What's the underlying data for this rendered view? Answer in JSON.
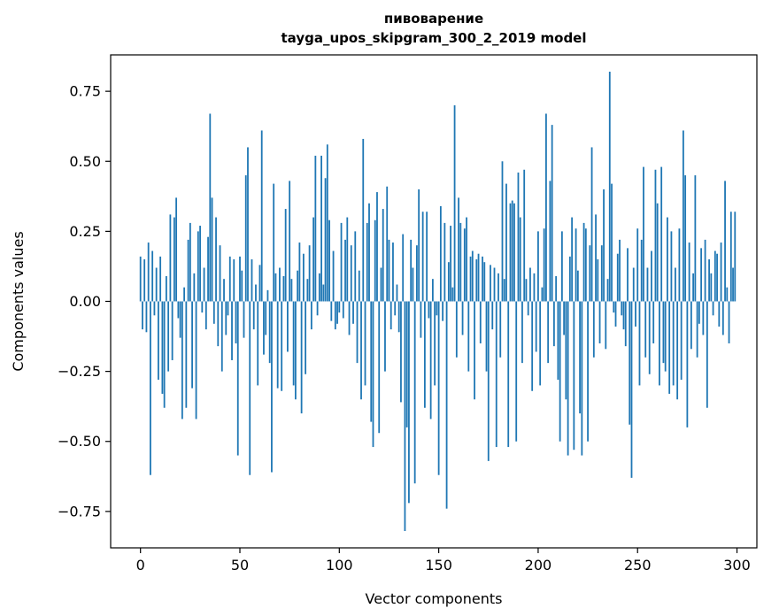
{
  "figure": {
    "title": "пивоварение",
    "subtitle": "tayga_upos_skipgram_300_2_2019 model",
    "xlabel": "Vector components",
    "ylabel": "Components values"
  },
  "chart_data": {
    "type": "bar",
    "title": "пивоварение",
    "subtitle": "tayga_upos_skipgram_300_2_2019 model",
    "xlabel": "Vector components",
    "ylabel": "Components values",
    "grid": false,
    "legend": null,
    "bar_color": "#1f77b4",
    "axis_color": "#000000",
    "xlim": [
      -15,
      310
    ],
    "ylim": [
      -0.88,
      0.88
    ],
    "xticks": [
      0,
      50,
      100,
      150,
      200,
      250,
      300
    ],
    "xtick_labels": [
      "0",
      "50",
      "100",
      "150",
      "200",
      "250",
      "300"
    ],
    "yticks": [
      -0.75,
      -0.5,
      -0.25,
      0,
      0.25,
      0.5,
      0.75
    ],
    "ytick_labels": [
      "−0.75",
      "−0.50",
      "−0.25",
      "0.00",
      "0.25",
      "0.50",
      "0.75"
    ],
    "x_start": 0,
    "values": [
      0.16,
      -0.1,
      0.15,
      -0.11,
      0.21,
      -0.62,
      0.18,
      -0.05,
      0.12,
      -0.28,
      0.16,
      -0.33,
      -0.38,
      0.09,
      -0.25,
      0.31,
      -0.21,
      0.3,
      0.37,
      -0.06,
      -0.13,
      -0.42,
      0.05,
      -0.38,
      0.22,
      0.28,
      -0.31,
      0.1,
      -0.42,
      0.25,
      0.27,
      -0.04,
      0.12,
      -0.1,
      0.23,
      0.67,
      0.37,
      -0.08,
      0.3,
      -0.16,
      0.2,
      -0.25,
      0.08,
      -0.12,
      -0.05,
      0.16,
      -0.21,
      0.15,
      -0.15,
      -0.55,
      0.16,
      0.11,
      -0.13,
      0.45,
      0.55,
      -0.62,
      0.15,
      -0.1,
      0.06,
      -0.3,
      0.13,
      0.61,
      -0.19,
      -0.12,
      0.04,
      -0.22,
      -0.61,
      0.42,
      0.1,
      -0.31,
      0.12,
      -0.32,
      0.09,
      0.33,
      -0.18,
      0.43,
      0.08,
      -0.3,
      -0.35,
      0.11,
      0.21,
      -0.4,
      0.17,
      -0.26,
      0.08,
      0.2,
      -0.1,
      0.3,
      0.52,
      -0.05,
      0.1,
      0.52,
      0.06,
      0.44,
      0.56,
      0.29,
      -0.07,
      0.18,
      -0.1,
      -0.08,
      -0.04,
      0.28,
      -0.06,
      0.22,
      0.3,
      -0.12,
      0.2,
      -0.08,
      0.25,
      -0.22,
      0.11,
      -0.35,
      0.58,
      -0.3,
      0.28,
      0.35,
      -0.43,
      -0.52,
      0.29,
      0.39,
      -0.47,
      0.12,
      0.33,
      -0.25,
      0.41,
      0.22,
      -0.1,
      0.21,
      -0.05,
      0.06,
      -0.11,
      -0.36,
      0.24,
      -0.82,
      -0.45,
      -0.72,
      0.22,
      0.12,
      -0.65,
      0.2,
      0.4,
      -0.13,
      0.32,
      -0.38,
      0.32,
      -0.06,
      -0.42,
      0.08,
      -0.3,
      -0.05,
      -0.62,
      0.34,
      -0.07,
      0.28,
      -0.74,
      0.14,
      0.27,
      0.05,
      0.7,
      -0.2,
      0.37,
      0.28,
      -0.12,
      0.26,
      0.3,
      -0.25,
      0.16,
      0.18,
      -0.35,
      0.15,
      0.17,
      -0.15,
      0.16,
      0.14,
      -0.25,
      -0.57,
      0.13,
      -0.1,
      0.12,
      -0.52,
      0.1,
      -0.2,
      0.5,
      0.08,
      0.42,
      -0.52,
      0.35,
      0.36,
      0.35,
      -0.5,
      0.46,
      0.3,
      -0.22,
      0.47,
      0.08,
      -0.05,
      0.12,
      -0.32,
      0.1,
      -0.18,
      0.25,
      -0.3,
      0.05,
      0.26,
      0.67,
      -0.22,
      0.43,
      0.63,
      -0.16,
      0.09,
      -0.28,
      -0.5,
      0.25,
      -0.12,
      -0.35,
      -0.55,
      0.16,
      0.3,
      -0.53,
      0.26,
      0.11,
      -0.4,
      -0.55,
      0.28,
      0.26,
      -0.5,
      0.2,
      0.55,
      -0.2,
      0.31,
      0.15,
      -0.15,
      0.2,
      0.4,
      -0.17,
      0.08,
      0.82,
      0.42,
      -0.04,
      -0.09,
      0.17,
      0.22,
      -0.05,
      -0.1,
      -0.16,
      0.19,
      -0.44,
      -0.63,
      0.12,
      -0.09,
      0.26,
      -0.3,
      0.22,
      0.48,
      -0.2,
      0.12,
      -0.26,
      0.18,
      -0.15,
      0.47,
      0.35,
      -0.3,
      0.48,
      -0.22,
      -0.25,
      0.3,
      -0.33,
      0.25,
      -0.3,
      0.12,
      -0.35,
      0.26,
      -0.28,
      0.61,
      0.45,
      -0.45,
      0.21,
      -0.17,
      0.1,
      0.45,
      -0.2,
      -0.08,
      0.19,
      -0.12,
      0.22,
      -0.38,
      0.15,
      0.1,
      -0.05,
      0.18,
      0.17,
      -0.09,
      0.21,
      -0.12,
      0.43,
      0.05,
      -0.15,
      0.32,
      0.12,
      0.32
    ]
  }
}
